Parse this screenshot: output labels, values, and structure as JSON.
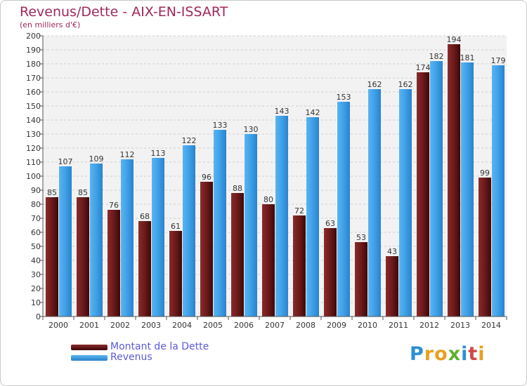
{
  "title": "Revenus/Dette - AIX-EN-ISSART",
  "subtitle": "(en milliers d'€)",
  "logo": {
    "letters": [
      "P",
      "r",
      "o",
      "x",
      "i",
      "t",
      "i"
    ],
    "colors": [
      "#2c8fd4",
      "#e8a020",
      "#e8a020",
      "#60b030",
      "#2c8fd4",
      "#d04848",
      "#e8a020"
    ]
  },
  "colors": {
    "dette": "#6b1a1a",
    "revenus": "#3ea0e8",
    "title": "#a0285a",
    "legend_text": "#5a5ad8"
  },
  "chart_data": {
    "type": "bar",
    "title": "Revenus/Dette - AIX-EN-ISSART",
    "subtitle": "(en milliers d'€)",
    "xlabel": "",
    "ylabel": "",
    "ylim": [
      0,
      200
    ],
    "yticks": [
      0,
      10,
      20,
      30,
      40,
      50,
      60,
      70,
      80,
      90,
      100,
      110,
      120,
      130,
      140,
      150,
      160,
      170,
      180,
      190,
      200
    ],
    "grid": true,
    "legend_position": "bottom-left",
    "categories": [
      "2000",
      "2001",
      "2002",
      "2003",
      "2004",
      "2005",
      "2006",
      "2007",
      "2008",
      "2009",
      "2010",
      "2011",
      "2012",
      "2013",
      "2014"
    ],
    "series": [
      {
        "name": "Montant de la Dette",
        "color": "#6b1a1a",
        "values": [
          85,
          85,
          76,
          68,
          61,
          96,
          88,
          80,
          72,
          63,
          53,
          43,
          174,
          194,
          99
        ]
      },
      {
        "name": "Revenus",
        "color": "#3ea0e8",
        "values": [
          107,
          109,
          112,
          113,
          122,
          133,
          130,
          143,
          142,
          153,
          162,
          162,
          182,
          181,
          179
        ]
      }
    ]
  }
}
